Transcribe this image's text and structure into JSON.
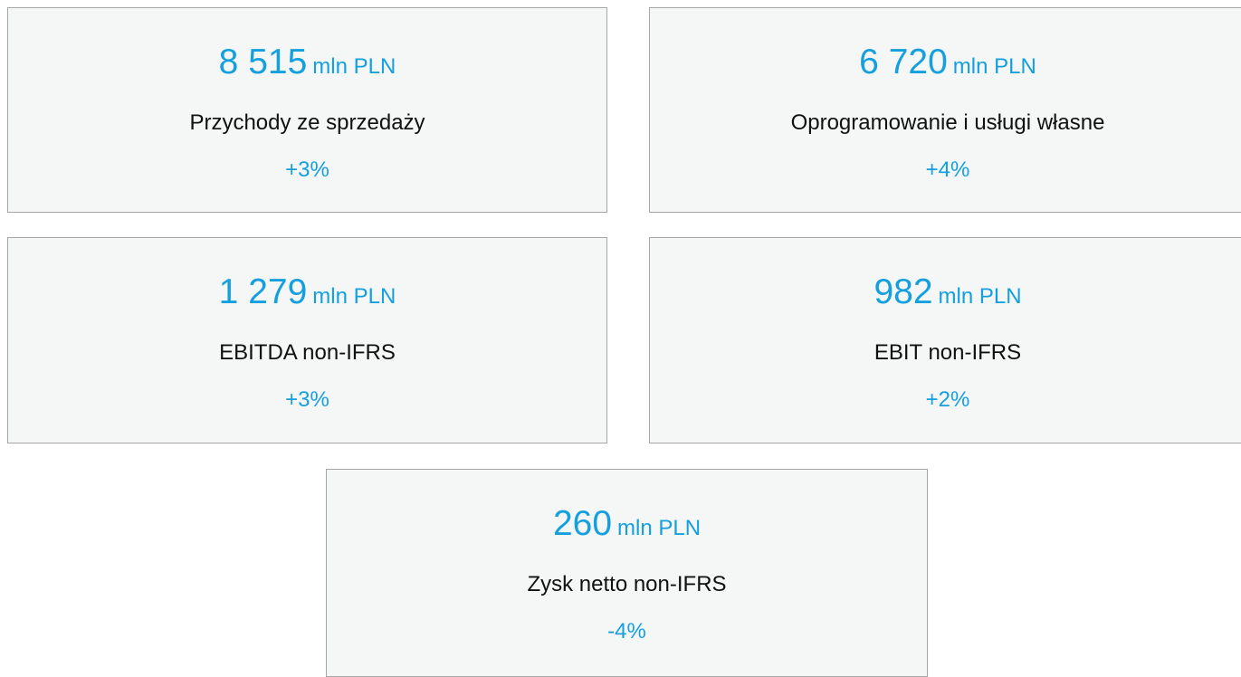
{
  "cards": [
    {
      "value": "8 515",
      "unit": "mln PLN",
      "label": "Przychody ze sprzedaży",
      "change": "+3%"
    },
    {
      "value": "6 720",
      "unit": "mln PLN",
      "label": "Oprogramowanie i usługi własne",
      "change": "+4%"
    },
    {
      "value": "1 279",
      "unit": "mln PLN",
      "label": "EBITDA non-IFRS",
      "change": "+3%"
    },
    {
      "value": "982",
      "unit": "mln PLN",
      "label": "EBIT non-IFRS",
      "change": "+2%"
    },
    {
      "value": "260",
      "unit": "mln PLN",
      "label": "Zysk netto non-IFRS",
      "change": "-4%"
    }
  ]
}
